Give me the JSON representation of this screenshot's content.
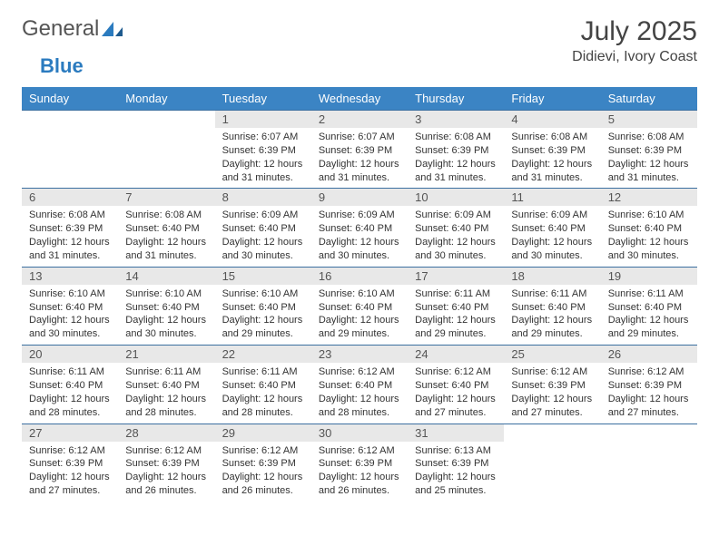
{
  "logo": {
    "text1": "General",
    "text2": "Blue"
  },
  "title": "July 2025",
  "location": "Didievi, Ivory Coast",
  "colors": {
    "header_bg": "#3b84c4",
    "header_fg": "#ffffff",
    "daynum_bg": "#e8e8e8",
    "row_border": "#3b6fa0",
    "logo_blue": "#2b7bbf"
  },
  "weekdays": [
    "Sunday",
    "Monday",
    "Tuesday",
    "Wednesday",
    "Thursday",
    "Friday",
    "Saturday"
  ],
  "layout": {
    "first_weekday_index": 2,
    "days_in_month": 31
  },
  "days": {
    "1": {
      "sunrise": "6:07 AM",
      "sunset": "6:39 PM",
      "daylight": "12 hours and 31 minutes."
    },
    "2": {
      "sunrise": "6:07 AM",
      "sunset": "6:39 PM",
      "daylight": "12 hours and 31 minutes."
    },
    "3": {
      "sunrise": "6:08 AM",
      "sunset": "6:39 PM",
      "daylight": "12 hours and 31 minutes."
    },
    "4": {
      "sunrise": "6:08 AM",
      "sunset": "6:39 PM",
      "daylight": "12 hours and 31 minutes."
    },
    "5": {
      "sunrise": "6:08 AM",
      "sunset": "6:39 PM",
      "daylight": "12 hours and 31 minutes."
    },
    "6": {
      "sunrise": "6:08 AM",
      "sunset": "6:39 PM",
      "daylight": "12 hours and 31 minutes."
    },
    "7": {
      "sunrise": "6:08 AM",
      "sunset": "6:40 PM",
      "daylight": "12 hours and 31 minutes."
    },
    "8": {
      "sunrise": "6:09 AM",
      "sunset": "6:40 PM",
      "daylight": "12 hours and 30 minutes."
    },
    "9": {
      "sunrise": "6:09 AM",
      "sunset": "6:40 PM",
      "daylight": "12 hours and 30 minutes."
    },
    "10": {
      "sunrise": "6:09 AM",
      "sunset": "6:40 PM",
      "daylight": "12 hours and 30 minutes."
    },
    "11": {
      "sunrise": "6:09 AM",
      "sunset": "6:40 PM",
      "daylight": "12 hours and 30 minutes."
    },
    "12": {
      "sunrise": "6:10 AM",
      "sunset": "6:40 PM",
      "daylight": "12 hours and 30 minutes."
    },
    "13": {
      "sunrise": "6:10 AM",
      "sunset": "6:40 PM",
      "daylight": "12 hours and 30 minutes."
    },
    "14": {
      "sunrise": "6:10 AM",
      "sunset": "6:40 PM",
      "daylight": "12 hours and 30 minutes."
    },
    "15": {
      "sunrise": "6:10 AM",
      "sunset": "6:40 PM",
      "daylight": "12 hours and 29 minutes."
    },
    "16": {
      "sunrise": "6:10 AM",
      "sunset": "6:40 PM",
      "daylight": "12 hours and 29 minutes."
    },
    "17": {
      "sunrise": "6:11 AM",
      "sunset": "6:40 PM",
      "daylight": "12 hours and 29 minutes."
    },
    "18": {
      "sunrise": "6:11 AM",
      "sunset": "6:40 PM",
      "daylight": "12 hours and 29 minutes."
    },
    "19": {
      "sunrise": "6:11 AM",
      "sunset": "6:40 PM",
      "daylight": "12 hours and 29 minutes."
    },
    "20": {
      "sunrise": "6:11 AM",
      "sunset": "6:40 PM",
      "daylight": "12 hours and 28 minutes."
    },
    "21": {
      "sunrise": "6:11 AM",
      "sunset": "6:40 PM",
      "daylight": "12 hours and 28 minutes."
    },
    "22": {
      "sunrise": "6:11 AM",
      "sunset": "6:40 PM",
      "daylight": "12 hours and 28 minutes."
    },
    "23": {
      "sunrise": "6:12 AM",
      "sunset": "6:40 PM",
      "daylight": "12 hours and 28 minutes."
    },
    "24": {
      "sunrise": "6:12 AM",
      "sunset": "6:40 PM",
      "daylight": "12 hours and 27 minutes."
    },
    "25": {
      "sunrise": "6:12 AM",
      "sunset": "6:39 PM",
      "daylight": "12 hours and 27 minutes."
    },
    "26": {
      "sunrise": "6:12 AM",
      "sunset": "6:39 PM",
      "daylight": "12 hours and 27 minutes."
    },
    "27": {
      "sunrise": "6:12 AM",
      "sunset": "6:39 PM",
      "daylight": "12 hours and 27 minutes."
    },
    "28": {
      "sunrise": "6:12 AM",
      "sunset": "6:39 PM",
      "daylight": "12 hours and 26 minutes."
    },
    "29": {
      "sunrise": "6:12 AM",
      "sunset": "6:39 PM",
      "daylight": "12 hours and 26 minutes."
    },
    "30": {
      "sunrise": "6:12 AM",
      "sunset": "6:39 PM",
      "daylight": "12 hours and 26 minutes."
    },
    "31": {
      "sunrise": "6:13 AM",
      "sunset": "6:39 PM",
      "daylight": "12 hours and 25 minutes."
    }
  },
  "labels": {
    "sunrise": "Sunrise:",
    "sunset": "Sunset:",
    "daylight": "Daylight:"
  }
}
